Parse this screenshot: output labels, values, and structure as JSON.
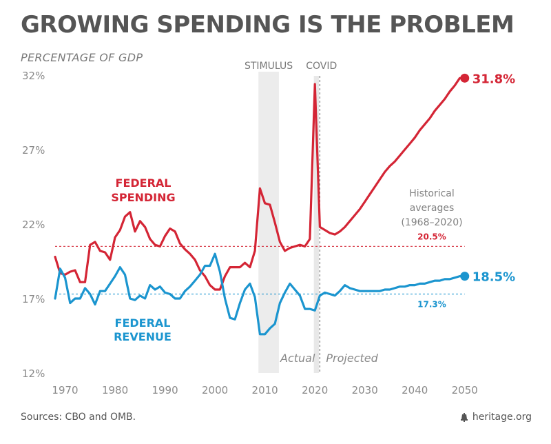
{
  "title": "GROWING SPENDING IS THE PROBLEM",
  "subtitle": "PERCENTAGE OF GDP",
  "footer": {
    "source": "Sources: CBO and OMB.",
    "brand": "heritage.org",
    "brand_icon": "liberty-bell-icon"
  },
  "colors": {
    "spending": "#d42535",
    "revenue": "#1b95cf",
    "tick": "#8a8a8a",
    "title": "#555555",
    "shade": "#ececec"
  },
  "chart_data": {
    "type": "line",
    "title": "GROWING SPENDING IS THE PROBLEM",
    "ylabel": "PERCENTAGE OF GDP",
    "xlim": [
      1968,
      2051
    ],
    "ylim": [
      12,
      32
    ],
    "x_ticks": [
      1970,
      1980,
      1990,
      2000,
      2010,
      2020,
      2030,
      2040,
      2050
    ],
    "y_ticks": [
      12,
      17,
      22,
      27,
      32
    ],
    "y_tick_labels": [
      "12%",
      "17%",
      "22%",
      "27%",
      "32%"
    ],
    "grid": false,
    "series": [
      {
        "name": "FEDERAL SPENDING",
        "label": [
          "FEDERAL",
          "SPENDING"
        ],
        "color": "#d42535",
        "end_label": "31.8%",
        "x": [
          1968,
          1969,
          1970,
          1971,
          1972,
          1973,
          1974,
          1975,
          1976,
          1977,
          1978,
          1979,
          1980,
          1981,
          1982,
          1983,
          1984,
          1985,
          1986,
          1987,
          1988,
          1989,
          1990,
          1991,
          1992,
          1993,
          1994,
          1995,
          1996,
          1997,
          1998,
          1999,
          2000,
          2001,
          2002,
          2003,
          2004,
          2005,
          2006,
          2007,
          2008,
          2009,
          2010,
          2011,
          2012,
          2013,
          2014,
          2015,
          2016,
          2017,
          2018,
          2019,
          2020,
          2021,
          2022,
          2023,
          2024,
          2025,
          2026,
          2027,
          2028,
          2029,
          2030,
          2031,
          2032,
          2033,
          2034,
          2035,
          2036,
          2037,
          2038,
          2039,
          2040,
          2041,
          2042,
          2043,
          2044,
          2045,
          2046,
          2047,
          2048,
          2049,
          2050
        ],
        "values": [
          19.8,
          18.7,
          18.6,
          18.8,
          18.9,
          18.1,
          18.1,
          20.6,
          20.8,
          20.2,
          20.1,
          19.6,
          21.1,
          21.6,
          22.5,
          22.8,
          21.5,
          22.2,
          21.8,
          21.0,
          20.6,
          20.5,
          21.2,
          21.7,
          21.5,
          20.7,
          20.3,
          20.0,
          19.6,
          18.9,
          18.5,
          17.9,
          17.6,
          17.6,
          18.5,
          19.1,
          19.1,
          19.1,
          19.4,
          19.1,
          20.2,
          24.4,
          23.4,
          23.3,
          22.1,
          20.8,
          20.2,
          20.4,
          20.5,
          20.6,
          20.5,
          21.0,
          31.4,
          21.8,
          21.6,
          21.4,
          21.3,
          21.5,
          21.8,
          22.2,
          22.6,
          23.0,
          23.5,
          24.0,
          24.5,
          25.0,
          25.5,
          25.9,
          26.2,
          26.6,
          27.0,
          27.4,
          27.8,
          28.3,
          28.7,
          29.1,
          29.6,
          30.0,
          30.4,
          30.9,
          31.3,
          31.8,
          31.8
        ]
      },
      {
        "name": "FEDERAL REVENUE",
        "label": [
          "FEDERAL",
          "REVENUE"
        ],
        "color": "#1b95cf",
        "end_label": "18.5%",
        "x": [
          1968,
          1969,
          1970,
          1971,
          1972,
          1973,
          1974,
          1975,
          1976,
          1977,
          1978,
          1979,
          1980,
          1981,
          1982,
          1983,
          1984,
          1985,
          1986,
          1987,
          1988,
          1989,
          1990,
          1991,
          1992,
          1993,
          1994,
          1995,
          1996,
          1997,
          1998,
          1999,
          2000,
          2001,
          2002,
          2003,
          2004,
          2005,
          2006,
          2007,
          2008,
          2009,
          2010,
          2011,
          2012,
          2013,
          2014,
          2015,
          2016,
          2017,
          2018,
          2019,
          2020,
          2021,
          2022,
          2023,
          2024,
          2025,
          2026,
          2027,
          2028,
          2029,
          2030,
          2031,
          2032,
          2033,
          2034,
          2035,
          2036,
          2037,
          2038,
          2039,
          2040,
          2041,
          2042,
          2043,
          2044,
          2045,
          2046,
          2047,
          2048,
          2049,
          2050
        ],
        "values": [
          17.0,
          19.0,
          18.4,
          16.7,
          17.0,
          17.0,
          17.7,
          17.3,
          16.6,
          17.5,
          17.5,
          18.0,
          18.5,
          19.1,
          18.6,
          17.0,
          16.9,
          17.2,
          17.0,
          17.9,
          17.6,
          17.8,
          17.4,
          17.3,
          17.0,
          17.0,
          17.5,
          17.8,
          18.2,
          18.6,
          19.2,
          19.2,
          20.0,
          18.8,
          17.0,
          15.7,
          15.6,
          16.7,
          17.6,
          18.0,
          17.1,
          14.6,
          14.6,
          15.0,
          15.3,
          16.7,
          17.4,
          18.0,
          17.6,
          17.2,
          16.3,
          16.3,
          16.2,
          17.2,
          17.4,
          17.3,
          17.2,
          17.5,
          17.9,
          17.7,
          17.6,
          17.5,
          17.5,
          17.5,
          17.5,
          17.5,
          17.6,
          17.6,
          17.7,
          17.8,
          17.8,
          17.9,
          17.9,
          18.0,
          18.0,
          18.1,
          18.2,
          18.2,
          18.3,
          18.3,
          18.4,
          18.5,
          18.5
        ]
      }
    ],
    "reference_lines": [
      {
        "label": "20.5%",
        "value": 20.5,
        "color": "#d42535"
      },
      {
        "label": "17.3%",
        "value": 17.3,
        "color": "#1b95cf"
      }
    ],
    "historical_note": [
      "Historical",
      "averages",
      "(1968–2020)"
    ],
    "shaded_regions": [
      {
        "label": "STIMULUS",
        "from": 2008.7,
        "to": 2012.8
      }
    ],
    "covid_band": {
      "from": 2019.8,
      "to": 2020.8
    },
    "events": [
      {
        "label": "COVID",
        "x": 2020.5
      }
    ],
    "projection": {
      "x": 2021,
      "actual_label": "Actual",
      "projected_label": "Projected"
    }
  }
}
